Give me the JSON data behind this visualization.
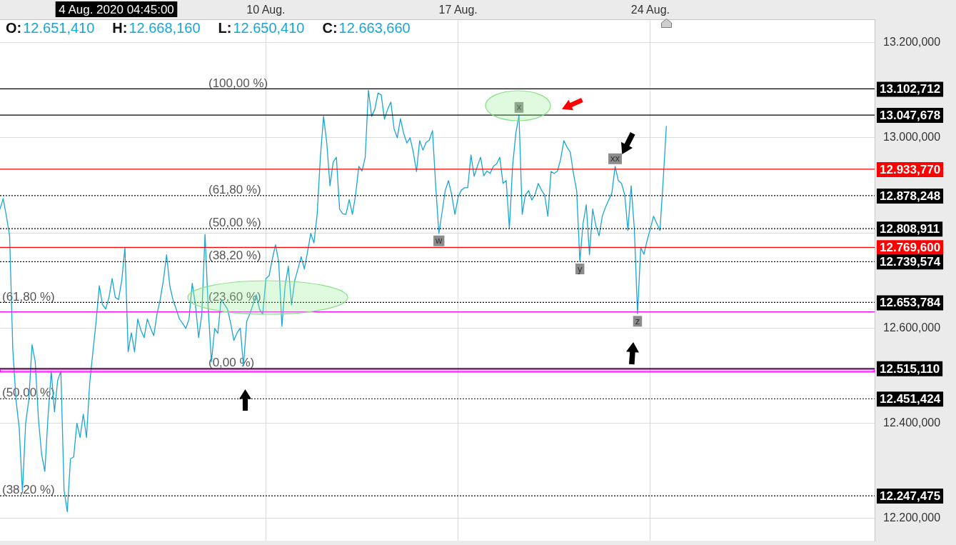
{
  "chart_data": {
    "type": "line",
    "annotations": [
      "4 Aug. 2020 04:45:00",
      "O:12.651,410",
      "H:12.668,160",
      "L:12.650,410",
      "C:12.663,660",
      {
        "text": "(100,00 %)",
        "y": 13102.712
      },
      {
        "text": "(61,80 %)",
        "y": 12878.248
      },
      {
        "text": "(50,00 %)",
        "y": 12808.911
      },
      {
        "text": "(38,20 %)",
        "y": 12739.574
      },
      {
        "text": "(23,60 %)",
        "y": 12653.784
      },
      {
        "text": "(0,00 %)",
        "y": 12515.11
      },
      {
        "text": "(61,80 %)",
        "y": 12653.784
      },
      {
        "text": "(50,00 %)",
        "y": 12451.424
      },
      {
        "text": "(38,20 %)",
        "y": 12247.475
      },
      {
        "text": "x",
        "y": 13048
      },
      {
        "text": "w",
        "y": 12799
      },
      {
        "text": "y",
        "y": 12740
      },
      {
        "text": "xx",
        "y": 12940
      },
      {
        "text": "z",
        "y": 12630
      }
    ],
    "categories": [
      null,
      null,
      null,
      null,
      null,
      null,
      null,
      null,
      null,
      null,
      null,
      null,
      null,
      null,
      null,
      null,
      null,
      null,
      null,
      null,
      null,
      null,
      null,
      null,
      null,
      null,
      null,
      null,
      null,
      null,
      null,
      null,
      null,
      null,
      null,
      null,
      null,
      null,
      null,
      null,
      null,
      null,
      null,
      null,
      null,
      null,
      null,
      null,
      null,
      null,
      null,
      null,
      null,
      null,
      null,
      null,
      null,
      null,
      null,
      null,
      null,
      null,
      null,
      null,
      null,
      null,
      null,
      null,
      null,
      null,
      null,
      null,
      null,
      null,
      null,
      null,
      null,
      null,
      null,
      null,
      null,
      null,
      null,
      "10 Aug.",
      null,
      null,
      null,
      null,
      null,
      null,
      null,
      null,
      null,
      null,
      null,
      null,
      null,
      null,
      null,
      null,
      null,
      null,
      null,
      null,
      null,
      null,
      null,
      null,
      null,
      null,
      null,
      null,
      null,
      null,
      null,
      null,
      null,
      null,
      null,
      null,
      null,
      null,
      null,
      null,
      null,
      null,
      null,
      null,
      null,
      null,
      null,
      null,
      null,
      null,
      null,
      null,
      null,
      null,
      null,
      null,
      null,
      null,
      null,
      "17 Aug.",
      null,
      null,
      null,
      null,
      null,
      null,
      null,
      null,
      null,
      null,
      null,
      null,
      null,
      null,
      null,
      null,
      null,
      null,
      null,
      null,
      null,
      null,
      null,
      null,
      null,
      null,
      null,
      null,
      null,
      null,
      null,
      null,
      null,
      null,
      null,
      null,
      null,
      null,
      null,
      null,
      null,
      null,
      null,
      null,
      null,
      null,
      null,
      null,
      null,
      null,
      null,
      null,
      null,
      null,
      null,
      null,
      null,
      null,
      null,
      "24 Aug.",
      null,
      null,
      null,
      null,
      null,
      null,
      null,
      null,
      null,
      null,
      null,
      null,
      null,
      null,
      null,
      null,
      null,
      null,
      null,
      null,
      null,
      null,
      null,
      null,
      null,
      null,
      null,
      null,
      null,
      null,
      null,
      null,
      null,
      null,
      null,
      null,
      null,
      null,
      null,
      null,
      null,
      null,
      null,
      null,
      null,
      null,
      null,
      null,
      null,
      null,
      null,
      null,
      null,
      null,
      null,
      null,
      null,
      null,
      null,
      null,
      null,
      null,
      null,
      null,
      null,
      null,
      null,
      null,
      null,
      null
    ],
    "values": [
      12850,
      12872,
      12835,
      12794,
      12555,
      12449,
      12390,
      12254,
      12400,
      12449,
      12565,
      12529,
      12409,
      12334,
      12299,
      12415,
      12509,
      12424,
      12490,
      12509,
      12259,
      12214,
      12325,
      12329,
      12400,
      12370,
      12419,
      12370,
      12484,
      12550,
      12614,
      12689,
      12649,
      12640,
      12664,
      12704,
      12664,
      12660,
      12700,
      12769,
      12550,
      12590,
      12550,
      12619,
      12595,
      12580,
      12619,
      12600,
      12584,
      12629,
      12660,
      12700,
      12754,
      12689,
      12659,
      12640,
      12619,
      12610,
      12599,
      12619,
      12694,
      12649,
      12580,
      12629,
      12797,
      12640,
      12529,
      12599,
      12589,
      12659,
      12650,
      12640,
      12610,
      12574,
      12590,
      12600,
      12520,
      12614,
      12630,
      12650,
      12670,
      12640,
      12629,
      12704,
      12710,
      12745,
      12775,
      12739,
      12604,
      12689,
      12730,
      12649,
      12700,
      12724,
      12750,
      12724,
      12760,
      12799,
      12779,
      12839,
      12959,
      13045,
      12989,
      12899,
      12949,
      12959,
      12850,
      12840,
      12839,
      12870,
      12839,
      12880,
      12940,
      12930,
      12959,
      13100,
      13045,
      13060,
      13094,
      13090,
      13039,
      13060,
      13075,
      13019,
      13000,
      13040,
      13009,
      12989,
      13000,
      12970,
      12929,
      12994,
      12974,
      12990,
      12995,
      13015,
      12899,
      12799,
      12844,
      12890,
      12910,
      12880,
      12839,
      12875,
      12890,
      12895,
      12895,
      12964,
      12919,
      12940,
      12959,
      12920,
      12930,
      12925,
      12940,
      12945,
      12959,
      12904,
      12910,
      12809,
      12940,
      13009,
      13048,
      12839,
      12880,
      12889,
      12869,
      12880,
      12904,
      12890,
      12880,
      12835,
      12929,
      12925,
      12930,
      12955,
      12994,
      12980,
      12970,
      12925,
      12889,
      12740,
      12820,
      12859,
      12754,
      12850,
      12815,
      12794,
      12835,
      12854,
      12869,
      12884,
      12940,
      12910,
      12904,
      12880,
      12805,
      12899,
      12809,
      12630,
      12769,
      12755,
      12784,
      12809,
      12835,
      12820,
      12805,
      12910,
      13025,
      null,
      null,
      null,
      null,
      null,
      null,
      null,
      null,
      null,
      null,
      null,
      null,
      null,
      null,
      null,
      null,
      null,
      null,
      null,
      null,
      null,
      null,
      null,
      null,
      null,
      null,
      null,
      null,
      null,
      null,
      null,
      null,
      null,
      null,
      null,
      null,
      null,
      null,
      null,
      null,
      null,
      null,
      null,
      null,
      null,
      null,
      null,
      null,
      null,
      null,
      null,
      null,
      null,
      null,
      null,
      null,
      null,
      null,
      null,
      null,
      null,
      null,
      null,
      null,
      null
    ],
    "color": "#19a6d6",
    "ylim": [
      12153,
      13249
    ],
    "yticks": [
      {
        "value": 12200,
        "label": "12.200,000"
      },
      {
        "value": 12400,
        "label": "12.400,000"
      },
      {
        "value": 12600,
        "label": "12.600,000"
      },
      {
        "value": 12800,
        "label": null
      },
      {
        "value": 13000,
        "label": "13.000,000"
      },
      {
        "value": 13200,
        "label": "13.200,000"
      }
    ],
    "grid": true,
    "ref_lines": [
      {
        "axis": "y",
        "value": 13102.712,
        "label": "13.102,712",
        "color": "#000000",
        "line_style": "solid"
      },
      {
        "axis": "y",
        "value": 13047.678,
        "label": "13.047,678",
        "color": "#000000",
        "line_style": "solid"
      },
      {
        "axis": "y",
        "value": 12933.77,
        "label": "12.933,770",
        "color": "#ff0000",
        "line_style": "solid"
      },
      {
        "axis": "y",
        "value": 12878.248,
        "label": "12.878,248",
        "color": "#000000",
        "line_style": "dotted"
      },
      {
        "axis": "y",
        "value": 12808.911,
        "label": "12.808,911",
        "color": "#000000",
        "line_style": "dotted"
      },
      {
        "axis": "y",
        "value": 12769.6,
        "label": "12.769,600",
        "color": "#ff0000",
        "line_style": "solid"
      },
      {
        "axis": "y",
        "value": 12739.574,
        "label": "12.739,574",
        "color": "#000000",
        "line_style": "dotted"
      },
      {
        "axis": "y",
        "value": 12653.784,
        "label": "12.653,784",
        "color": "#000000",
        "line_style": "dotted"
      },
      {
        "axis": "y",
        "value": 12634,
        "color": "#ff00ff",
        "line_style": "solid"
      },
      {
        "axis": "y",
        "value": 12515.11,
        "label": "12.515,110",
        "color": "#000000",
        "line_style": "solid"
      },
      {
        "axis": "y",
        "value": 12451.424,
        "label": "12.451,424",
        "color": "#000000",
        "line_style": "dotted"
      },
      {
        "axis": "y",
        "value": 12247.475,
        "label": "12.247,475",
        "color": "#000000",
        "line_style": "dotted"
      }
    ],
    "bands": [
      {
        "axis": "y",
        "from": 12508,
        "to": 12513,
        "color": "#ff00ff"
      }
    ]
  }
}
